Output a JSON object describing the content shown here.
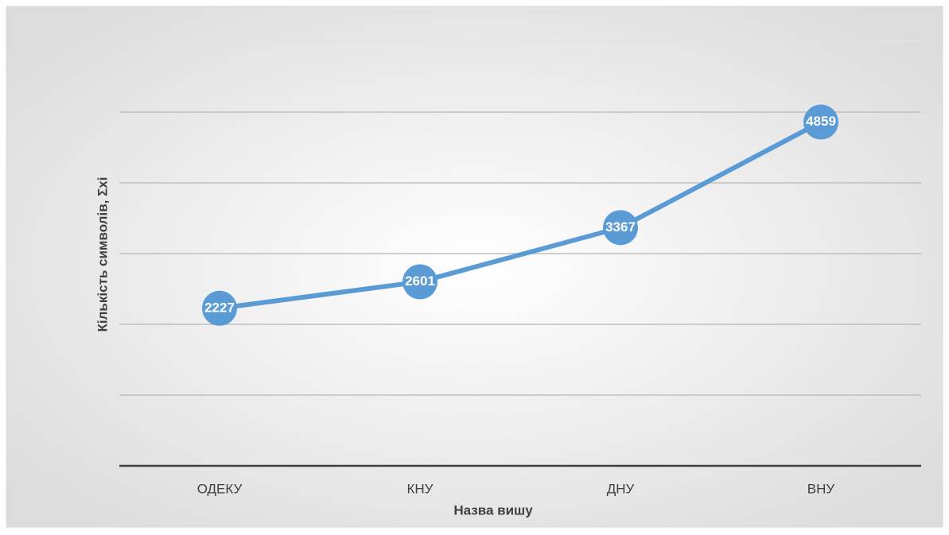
{
  "chart_data": {
    "type": "line",
    "x_label": "Назва вишу",
    "y_label": "Кількість символів, Σxi",
    "categories": [
      "ОДЕКУ",
      "КНУ",
      "ДНУ",
      "ВНУ"
    ],
    "series": [
      {
        "color": "#5b9bd5",
        "values": [
          2227,
          2601,
          3367,
          4859
        ]
      }
    ],
    "ylim": [
      0,
      6000
    ],
    "yticks": [
      0,
      1000,
      2000,
      3000,
      4000,
      5000,
      6000
    ],
    "grid": true
  }
}
